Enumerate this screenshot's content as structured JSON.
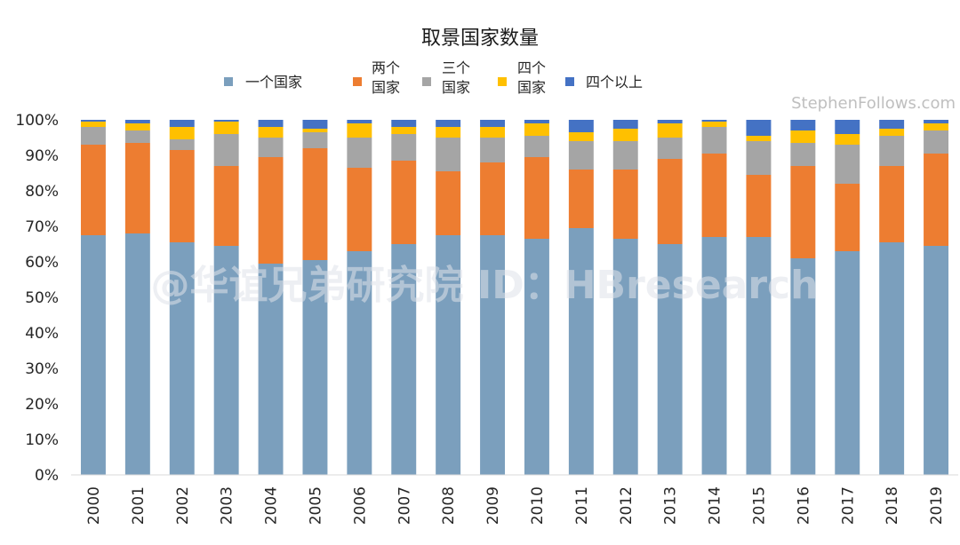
{
  "chart_data": {
    "type": "bar",
    "stacked": true,
    "percent": true,
    "title": "取景国家数量",
    "categories": [
      "2000",
      "2001",
      "2002",
      "2003",
      "2004",
      "2005",
      "2006",
      "2007",
      "2008",
      "2009",
      "2010",
      "2011",
      "2012",
      "2013",
      "2014",
      "2015",
      "2016",
      "2017",
      "2018",
      "2019"
    ],
    "series": [
      {
        "name": "一个国家",
        "color": "#7b9fbd",
        "values": [
          67.5,
          68,
          65.5,
          64.5,
          59.5,
          60.5,
          63,
          65,
          67.5,
          67.5,
          66.5,
          69.5,
          66.5,
          65,
          67,
          67,
          61,
          63,
          65.5,
          64.5
        ]
      },
      {
        "name": "两个\n国家",
        "color": "#ed7d31",
        "values": [
          25.5,
          25.5,
          26,
          22.5,
          30,
          31.5,
          23.5,
          23.5,
          18,
          20.5,
          23,
          16.5,
          19.5,
          24,
          23.5,
          17.5,
          26,
          19,
          21.5,
          26
        ]
      },
      {
        "name": "三个\n国家",
        "color": "#a5a5a5",
        "values": [
          5,
          3.5,
          3,
          9,
          5.5,
          4.5,
          8.5,
          7.5,
          9.5,
          7,
          6,
          8,
          8,
          6,
          7.5,
          9.5,
          6.5,
          11,
          8.5,
          6.5
        ]
      },
      {
        "name": "四个\n国家",
        "color": "#ffc000",
        "values": [
          1.5,
          2,
          3.5,
          3.5,
          3,
          1,
          4,
          2,
          3,
          3,
          3.5,
          2.5,
          3.5,
          4,
          1.5,
          1.5,
          3.5,
          3,
          2,
          2
        ]
      },
      {
        "name": "四个以上",
        "color": "#4472c4",
        "values": [
          0.5,
          1,
          2,
          0.5,
          2,
          2.5,
          1,
          2,
          2,
          2,
          1,
          3.5,
          2.5,
          1,
          0.5,
          4.5,
          3,
          4,
          2.5,
          1
        ]
      }
    ],
    "ylim": [
      0,
      100
    ],
    "yticks": [
      "0%",
      "10%",
      "20%",
      "30%",
      "40%",
      "50%",
      "60%",
      "70%",
      "80%",
      "90%",
      "100%"
    ],
    "legend_position": "top",
    "grid": false
  },
  "source_text": "StephenFollows.com",
  "watermark_text": "@华谊兄弟研究院 ID：HBresearch"
}
